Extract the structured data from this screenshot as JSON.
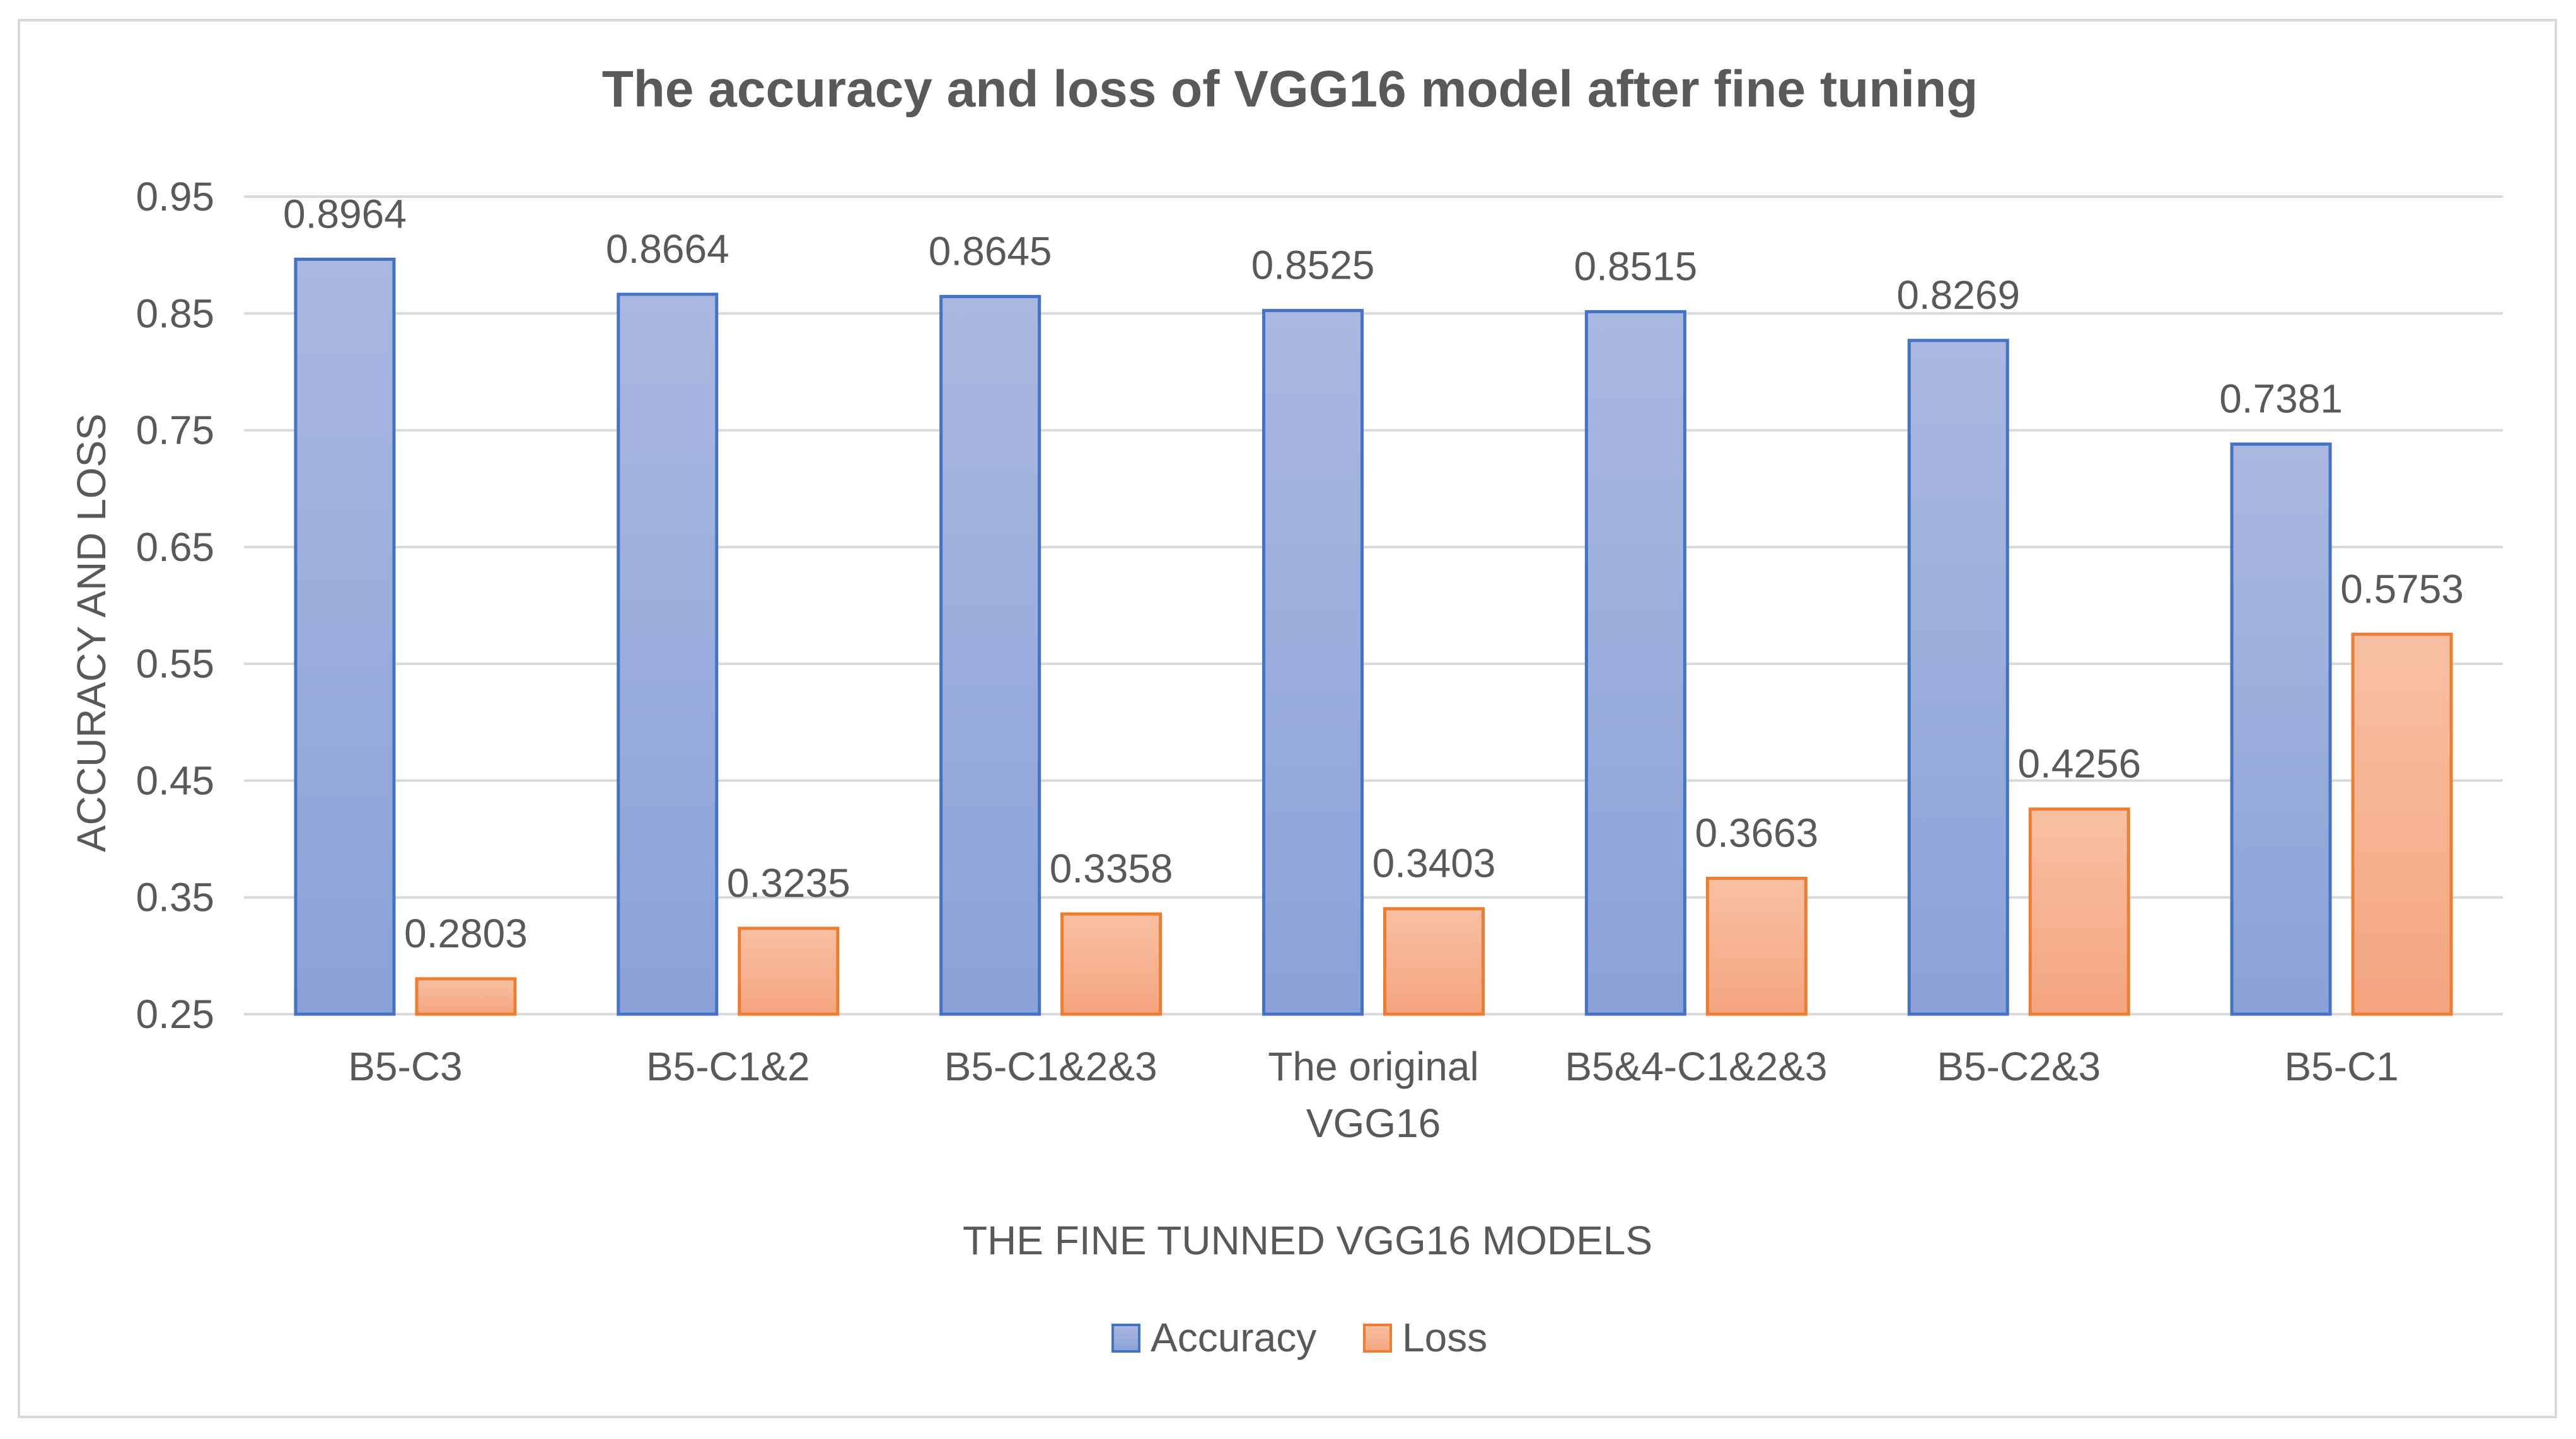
{
  "chart_data": {
    "type": "bar",
    "title": "The accuracy and loss of VGG16 model after fine tuning",
    "xlabel": "THE FINE TUNNED VGG16 MODELS",
    "ylabel": "ACCURACY AND LOSS",
    "ylim": [
      0.25,
      0.95
    ],
    "yticks": [
      "0.25",
      "0.35",
      "0.45",
      "0.55",
      "0.65",
      "0.75",
      "0.85",
      "0.95"
    ],
    "grid": true,
    "legend_position": "bottom",
    "categories": [
      [
        "B5-C3"
      ],
      [
        "B5-C1&2"
      ],
      [
        "B5-C1&2&3"
      ],
      [
        "The original",
        "VGG16"
      ],
      [
        "B5&4-C1&2&3"
      ],
      [
        "B5-C2&3"
      ],
      [
        "B5-C1"
      ]
    ],
    "series": [
      {
        "name": "Accuracy",
        "values": [
          0.8964,
          0.8664,
          0.8645,
          0.8525,
          0.8515,
          0.8269,
          0.7381
        ],
        "labels": [
          "0.8964",
          "0.8664",
          "0.8645",
          "0.8525",
          "0.8515",
          "0.8269",
          "0.7381"
        ],
        "fill_top": "#aab8e0",
        "fill_bottom": "#8aa2d8",
        "stroke": "#4472c4"
      },
      {
        "name": "Loss",
        "values": [
          0.2803,
          0.3235,
          0.3358,
          0.3403,
          0.3663,
          0.4256,
          0.5753
        ],
        "labels": [
          "0.2803",
          "0.3235",
          "0.3358",
          "0.3403",
          "0.3663",
          "0.4256",
          "0.5753"
        ],
        "fill_top": "#f8c0a3",
        "fill_bottom": "#f4a57f",
        "stroke": "#ed7d31"
      }
    ],
    "colors": {
      "text": "#595959",
      "grid": "#d9d9d9"
    }
  }
}
